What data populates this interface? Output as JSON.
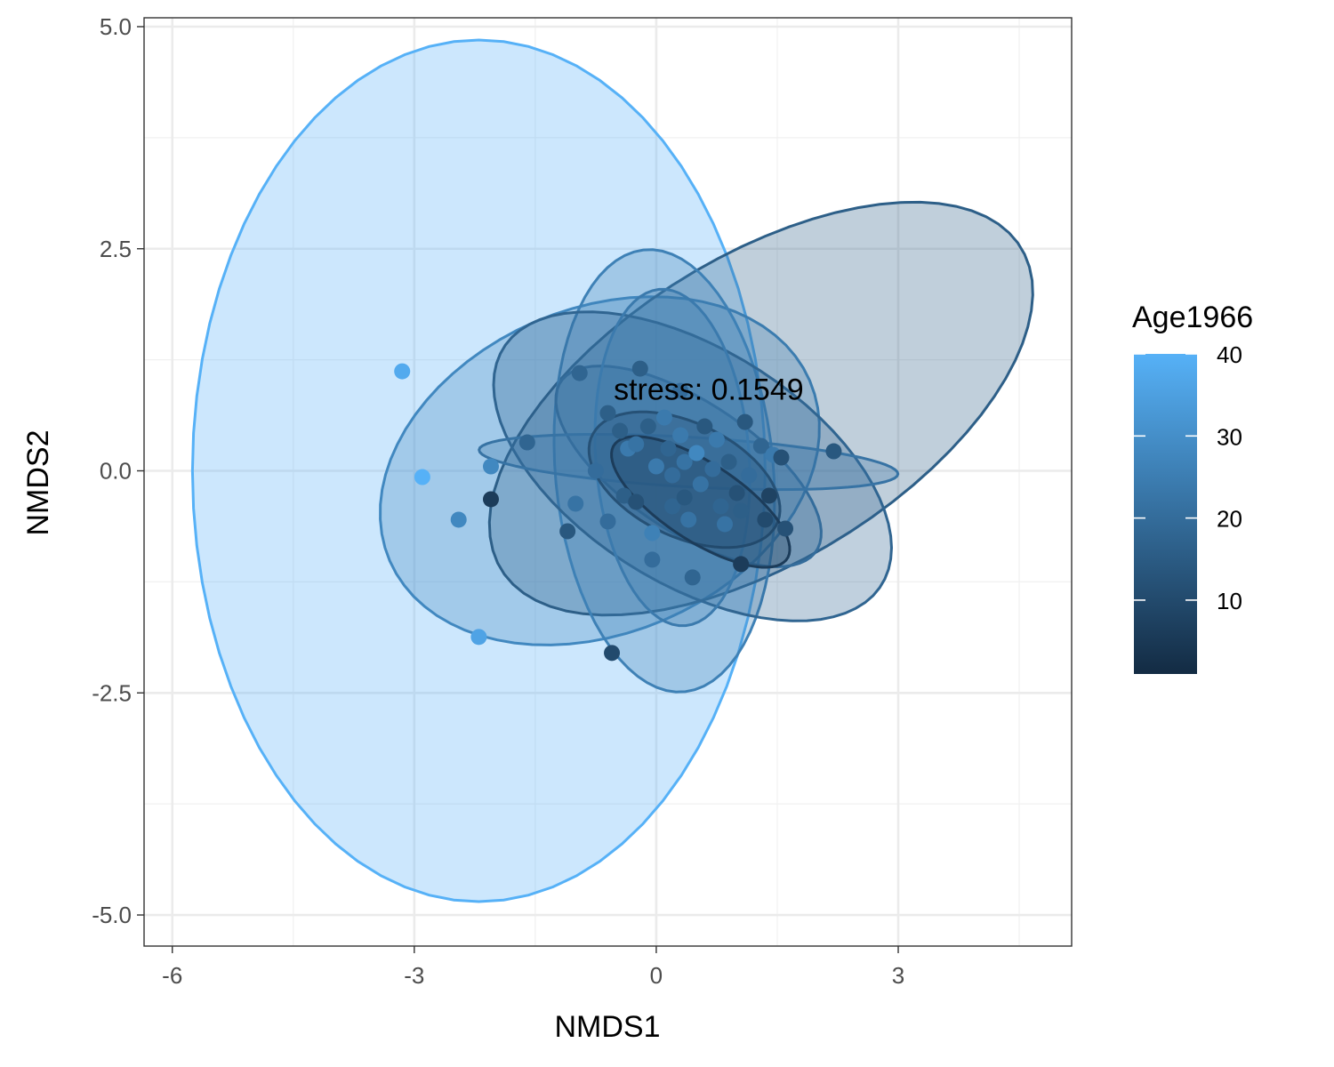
{
  "chart_data": {
    "type": "scatter",
    "title": "",
    "xlabel": "NMDS1",
    "ylabel": "NMDS2",
    "xlim": [
      -6.35,
      5.15
    ],
    "ylim": [
      -5.35,
      5.1
    ],
    "x_ticks": [
      -6,
      -3,
      0,
      3
    ],
    "x_tick_labels": [
      "-6",
      "-3",
      "0",
      "3"
    ],
    "y_ticks": [
      5.0,
      2.5,
      0.0,
      -2.5,
      -5.0
    ],
    "y_tick_labels": [
      "5.0",
      "2.5",
      "0.0",
      "-2.5",
      "-5.0"
    ],
    "grid": true,
    "annotation": {
      "text": "stress: 0.1549",
      "x": 0.65,
      "y": 0.92
    },
    "legend": {
      "title": "Age1966",
      "placement": "right",
      "type": "colorbar",
      "min": 1,
      "max": 40,
      "ticks": [
        10,
        20,
        30,
        40
      ],
      "tick_labels": [
        "10",
        "20",
        "30",
        "40"
      ],
      "color_low": "#132B43",
      "color_high": "#56B1F7"
    },
    "points": [
      {
        "x": -3.15,
        "y": 1.12,
        "age": 38
      },
      {
        "x": -2.9,
        "y": -0.07,
        "age": 40
      },
      {
        "x": -2.45,
        "y": -0.55,
        "age": 28
      },
      {
        "x": -2.05,
        "y": 0.05,
        "age": 28
      },
      {
        "x": -2.05,
        "y": -0.32,
        "age": 6
      },
      {
        "x": -2.2,
        "y": -1.87,
        "age": 36
      },
      {
        "x": -1.6,
        "y": 0.32,
        "age": 18
      },
      {
        "x": -1.1,
        "y": -0.68,
        "age": 14
      },
      {
        "x": -1.0,
        "y": -0.37,
        "age": 22
      },
      {
        "x": -0.95,
        "y": 1.1,
        "age": 18
      },
      {
        "x": -0.6,
        "y": 0.65,
        "age": 16
      },
      {
        "x": -0.75,
        "y": 0.0,
        "age": 20
      },
      {
        "x": -0.6,
        "y": -0.57,
        "age": 20
      },
      {
        "x": -0.45,
        "y": 0.45,
        "age": 16
      },
      {
        "x": -0.55,
        "y": -2.05,
        "age": 10
      },
      {
        "x": -0.35,
        "y": 0.25,
        "age": 24
      },
      {
        "x": -0.4,
        "y": -0.28,
        "age": 16
      },
      {
        "x": -0.2,
        "y": 1.15,
        "age": 16
      },
      {
        "x": -0.25,
        "y": 0.3,
        "age": 22
      },
      {
        "x": -0.25,
        "y": -0.35,
        "age": 12
      },
      {
        "x": -0.1,
        "y": 0.5,
        "age": 16
      },
      {
        "x": -0.05,
        "y": -1.0,
        "age": 20
      },
      {
        "x": 0.0,
        "y": 0.05,
        "age": 24
      },
      {
        "x": -0.05,
        "y": -0.7,
        "age": 26
      },
      {
        "x": 0.1,
        "y": 0.6,
        "age": 24
      },
      {
        "x": 0.15,
        "y": 0.25,
        "age": 18
      },
      {
        "x": 0.2,
        "y": -0.05,
        "age": 20
      },
      {
        "x": 0.2,
        "y": -0.4,
        "age": 18
      },
      {
        "x": 0.3,
        "y": 0.9,
        "age": 20
      },
      {
        "x": 0.3,
        "y": 0.4,
        "age": 24
      },
      {
        "x": 0.35,
        "y": 0.1,
        "age": 22
      },
      {
        "x": 0.35,
        "y": -0.3,
        "age": 14
      },
      {
        "x": 0.4,
        "y": -0.55,
        "age": 22
      },
      {
        "x": 0.45,
        "y": -1.2,
        "age": 18
      },
      {
        "x": 0.5,
        "y": 0.2,
        "age": 28
      },
      {
        "x": 0.55,
        "y": -0.15,
        "age": 22
      },
      {
        "x": 0.6,
        "y": 0.5,
        "age": 14
      },
      {
        "x": 0.7,
        "y": 0.02,
        "age": 20
      },
      {
        "x": 0.75,
        "y": 0.35,
        "age": 24
      },
      {
        "x": 0.8,
        "y": -0.4,
        "age": 18
      },
      {
        "x": 0.85,
        "y": -0.6,
        "age": 22
      },
      {
        "x": 0.9,
        "y": 0.1,
        "age": 16
      },
      {
        "x": 1.0,
        "y": -0.25,
        "age": 12
      },
      {
        "x": 1.05,
        "y": -0.45,
        "age": 16
      },
      {
        "x": 1.05,
        "y": -1.05,
        "age": 6
      },
      {
        "x": 1.1,
        "y": 0.55,
        "age": 14
      },
      {
        "x": 1.15,
        "y": -0.05,
        "age": 20
      },
      {
        "x": 1.3,
        "y": 0.28,
        "age": 18
      },
      {
        "x": 1.35,
        "y": -0.55,
        "age": 10
      },
      {
        "x": 1.4,
        "y": -0.28,
        "age": 8
      },
      {
        "x": 1.45,
        "y": 0.18,
        "age": 24
      },
      {
        "x": 1.55,
        "y": 0.15,
        "age": 12
      },
      {
        "x": 1.6,
        "y": -0.65,
        "age": 12
      },
      {
        "x": 2.2,
        "y": 0.22,
        "age": 14
      }
    ],
    "ellipses": [
      {
        "cx": -2.2,
        "cy": 0.0,
        "rx": 3.55,
        "ry": 4.85,
        "angle": 0,
        "age": 40
      },
      {
        "cx": -0.7,
        "cy": 0.0,
        "rx": 2.8,
        "ry": 1.85,
        "angle": 18,
        "age": 28
      },
      {
        "cx": 1.3,
        "cy": 0.7,
        "rx": 3.7,
        "ry": 1.75,
        "angle": 28,
        "age": 16
      },
      {
        "cx": 0.1,
        "cy": 0.0,
        "rx": 1.35,
        "ry": 2.5,
        "angle": 6,
        "age": 26
      },
      {
        "cx": 0.45,
        "cy": 0.05,
        "rx": 2.7,
        "ry": 1.35,
        "angle": -28,
        "age": 18
      },
      {
        "cx": 0.4,
        "cy": 0.05,
        "rx": 1.85,
        "ry": 0.75,
        "angle": -30,
        "age": 20
      },
      {
        "cx": 0.4,
        "cy": 0.1,
        "rx": 2.6,
        "ry": 0.28,
        "angle": -3,
        "age": 22
      },
      {
        "cx": 0.2,
        "cy": 0.15,
        "rx": 0.95,
        "ry": 1.9,
        "angle": 5,
        "age": 24
      },
      {
        "cx": 0.35,
        "cy": -0.1,
        "rx": 1.25,
        "ry": 0.65,
        "angle": -22,
        "age": 12
      },
      {
        "cx": 0.55,
        "cy": -0.35,
        "rx": 1.25,
        "ry": 0.45,
        "angle": -30,
        "age": 6
      }
    ]
  }
}
